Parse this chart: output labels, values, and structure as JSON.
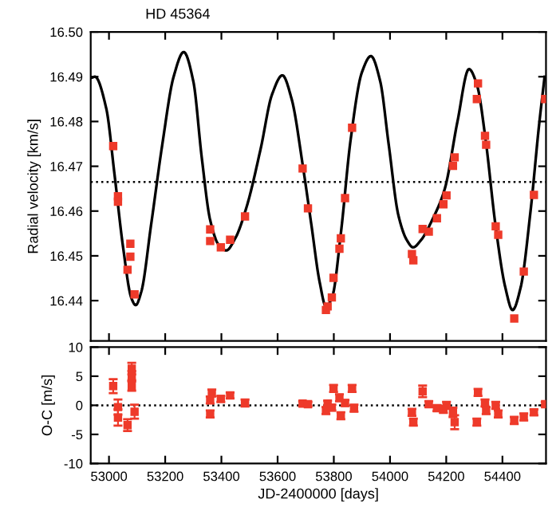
{
  "chart_data": [
    {
      "type": "scatter",
      "title": "HD 45364",
      "ylabel": "Radial velocity [km/s]",
      "xlim": [
        52935,
        54555
      ],
      "xticks": [
        53000,
        53200,
        53400,
        53600,
        53800,
        54000,
        54200,
        54400
      ],
      "ylim": [
        16.431,
        16.5
      ],
      "yticks": [
        16.44,
        16.45,
        16.46,
        16.47,
        16.48,
        16.49,
        {
          "value": 16.5,
          "label": "16.50"
        }
      ],
      "tick_labels": "y",
      "grid": false,
      "ref_lines": [
        {
          "axis": "y",
          "value": 16.4665,
          "color": "#000000",
          "line_style": "dotted"
        }
      ],
      "series": [
        {
          "type": "line",
          "color": "#000000",
          "marker": "none",
          "line_style": "solid",
          "x": [
            52940,
            52950,
            52990,
            53020,
            53050,
            53080,
            53095,
            53115,
            53150,
            53190,
            53230,
            53266,
            53300,
            53330,
            53360,
            53390,
            53417,
            53450,
            53490,
            53540,
            53580,
            53617,
            53650,
            53690,
            53720,
            53750,
            53772,
            53795,
            53825,
            53860,
            53900,
            53932,
            53965,
            53995,
            54030,
            54060,
            54082,
            54110,
            54150,
            54195,
            54240,
            54281,
            54310,
            54340,
            54375,
            54410,
            54436,
            54465,
            54500,
            54530,
            54550
          ],
          "values": [
            16.4898,
            16.49,
            16.483,
            16.468,
            16.452,
            16.4405,
            16.439,
            16.442,
            16.457,
            16.475,
            16.49,
            16.4955,
            16.489,
            16.472,
            16.458,
            16.4525,
            16.4512,
            16.454,
            16.461,
            16.474,
            16.486,
            16.4903,
            16.485,
            16.47,
            16.457,
            16.444,
            16.4387,
            16.441,
            16.455,
            16.476,
            16.491,
            16.4946,
            16.489,
            16.475,
            16.459,
            16.4535,
            16.4519,
            16.4535,
            16.458,
            16.465,
            16.48,
            16.4917,
            16.488,
            16.476,
            16.457,
            16.443,
            16.4379,
            16.443,
            16.46,
            16.479,
            16.49
          ]
        },
        {
          "color": "#ee3a2a",
          "marker": "square",
          "x": [
            53015,
            53032,
            53032,
            53066,
            53076,
            53076,
            53091,
            53360,
            53360,
            53398,
            53431,
            53484,
            53689,
            53708,
            53772,
            53778,
            53793,
            53799,
            53820,
            53825,
            53840,
            53865,
            54078,
            54083,
            54116,
            54138,
            54167,
            54190,
            54201,
            54224,
            54230,
            54309,
            54313,
            54338,
            54342,
            54376,
            54385,
            54442,
            54476,
            54512,
            54552
          ],
          "values": [
            16.4745,
            16.4633,
            16.4621,
            16.4469,
            16.4527,
            16.4498,
            16.4414,
            16.4559,
            16.4533,
            16.4519,
            16.4536,
            16.4588,
            16.4695,
            16.4606,
            16.4379,
            16.4387,
            16.4407,
            16.4451,
            16.4516,
            16.4539,
            16.4629,
            16.4786,
            16.4504,
            16.449,
            16.456,
            16.4554,
            16.4584,
            16.4615,
            16.4635,
            16.4701,
            16.472,
            16.485,
            16.4885,
            16.4768,
            16.4748,
            16.4566,
            16.4547,
            16.436,
            16.4465,
            16.4636,
            16.485
          ]
        }
      ]
    },
    {
      "type": "scatter",
      "xlabel": "JD-2400000 [days]",
      "ylabel": "O-C [m/s]",
      "xlim": [
        52935,
        54555
      ],
      "xticks": [
        53000,
        53200,
        53400,
        53600,
        53800,
        54000,
        54200,
        54400
      ],
      "ylim": [
        -10,
        10
      ],
      "yticks": [
        -10,
        -5,
        0,
        5,
        10
      ],
      "grid": false,
      "ref_lines": [
        {
          "axis": "y",
          "value": 0,
          "color": "#000000",
          "line_style": "dotted"
        }
      ],
      "series": [
        {
          "color": "#ee3a2a",
          "marker": "square",
          "x": [
            53015,
            53032,
            53032,
            53066,
            53081,
            53081,
            53081,
            53091,
            53360,
            53360,
            53366,
            53398,
            53431,
            53484,
            53689,
            53708,
            53772,
            53778,
            53793,
            53799,
            53820,
            53825,
            53840,
            53865,
            53872,
            54078,
            54083,
            54116,
            54138,
            54167,
            54190,
            54201,
            54224,
            54230,
            54309,
            54313,
            54338,
            54342,
            54376,
            54385,
            54442,
            54476,
            54512,
            54552
          ],
          "values": [
            3.3,
            -0.3,
            -2.1,
            -3.4,
            6.3,
            5.1,
            3.3,
            -1.1,
            0.9,
            -1.5,
            2.1,
            1.1,
            1.7,
            0.4,
            0.3,
            0.2,
            -0.9,
            0.3,
            -0.4,
            2.9,
            1.3,
            -1.8,
            0.4,
            2.9,
            -0.5,
            -1.2,
            -2.9,
            2.4,
            0.2,
            -0.5,
            -0.7,
            0,
            -1.2,
            -2.9,
            -2.9,
            2.2,
            0.4,
            -0.9,
            0,
            -1.5,
            -2.6,
            -2.0,
            -1.2,
            0.2
          ],
          "errors": [
            1.2,
            1.3,
            1.4,
            1,
            1,
            0.8,
            0.8,
            1.2,
            0.6,
            0.6,
            0.6,
            0.5,
            0.5,
            0.6,
            0.4,
            0.4,
            0.6,
            0.5,
            0.5,
            0.6,
            0.6,
            0.6,
            0.5,
            0.6,
            0.6,
            0.6,
            0.6,
            1,
            0.5,
            0.5,
            0.6,
            0.6,
            0.8,
            1.2,
            0.6,
            0.6,
            0.6,
            0.6,
            0.6,
            0.6,
            0.6,
            0.6,
            0.5,
            0.4
          ]
        }
      ]
    }
  ]
}
